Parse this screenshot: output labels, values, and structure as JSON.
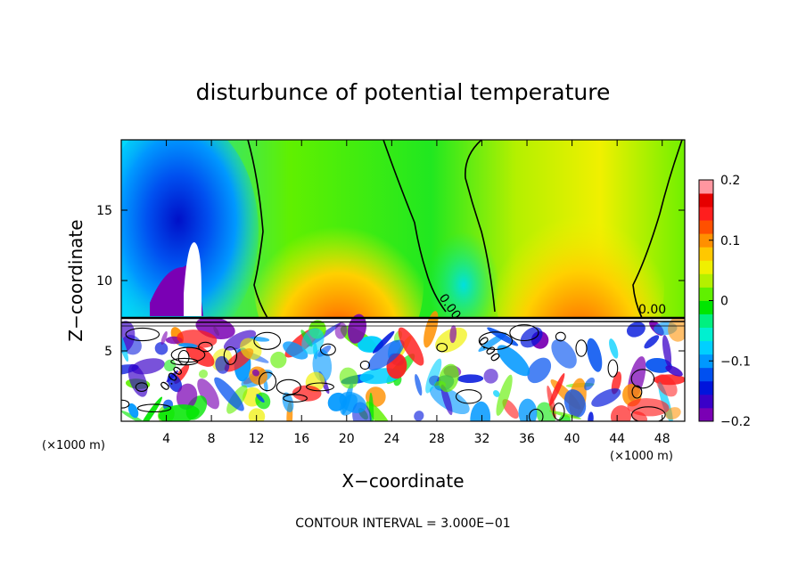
{
  "chart_data": {
    "type": "heatmap",
    "title": "disturbunce of potential temperature",
    "xlabel": "X−coordinate",
    "ylabel": "Z−coordinate",
    "x_unit": "(×1000 m)",
    "x_ticks": [
      4,
      8,
      12,
      16,
      20,
      24,
      28,
      32,
      36,
      40,
      44,
      48
    ],
    "y_ticks": [
      5,
      10,
      15
    ],
    "xlim": [
      0,
      50
    ],
    "ylim": [
      0,
      20
    ],
    "colorbar": {
      "ticks": [
        "0.2",
        "0.1",
        "0",
        "−0.1",
        "−0.2"
      ],
      "tick_values": [
        0.2,
        0.1,
        0,
        -0.1,
        -0.2
      ],
      "range": [
        -0.2,
        0.2
      ],
      "colors": [
        "#7a00b4",
        "#3a00c8",
        "#0014dc",
        "#0050f0",
        "#0098ff",
        "#00d0ff",
        "#00f0d0",
        "#00f080",
        "#00e600",
        "#60f000",
        "#b4f000",
        "#f0f000",
        "#ffc800",
        "#ff9000",
        "#ff5000",
        "#ff1e1e",
        "#e60000",
        "#ff96a0"
      ]
    },
    "contour_label": "0.00",
    "contour_interval_text": "CONTOUR INTERVAL = 3.000E−01",
    "grid": false
  }
}
